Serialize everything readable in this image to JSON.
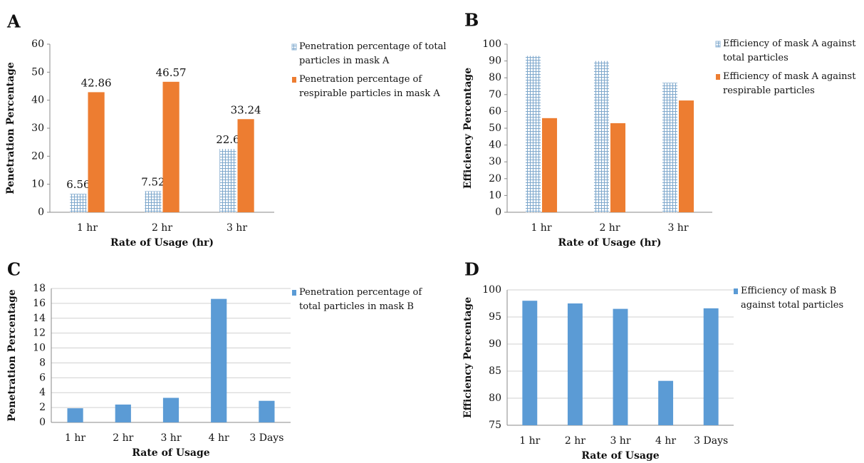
{
  "chart_data": [
    {
      "type": "bar",
      "label": "A",
      "y_label": "Penetration Percentage",
      "x_label": "Rate of Usage (hr)",
      "categories": [
        "1 hr",
        "2 hr",
        "3 hr"
      ],
      "series": [
        {
          "name": "Penetration percentage of total particles in mask A",
          "color": "#8fb4d6",
          "pattern": "grid",
          "values": [
            6.56,
            7.52,
            22.6
          ]
        },
        {
          "name": "Penetration percentage of respirable particles in mask A",
          "color": "#ed7d31",
          "values": [
            42.86,
            46.57,
            33.24
          ]
        }
      ],
      "ylim": [
        0,
        60
      ],
      "yticks": [
        0,
        10,
        20,
        30,
        40,
        50,
        60
      ],
      "grid": false,
      "data_labels": true
    },
    {
      "type": "bar",
      "label": "B",
      "y_label": "Efficiency Percentage",
      "x_label": "Rate of Usage (hr)",
      "categories": [
        "1 hr",
        "2 hr",
        "3 hr"
      ],
      "series": [
        {
          "name": "Efficiency of mask A against total particles",
          "color": "#8fb4d6",
          "pattern": "grid",
          "values": [
            93,
            90,
            77
          ]
        },
        {
          "name": "Efficiency of mask A against respirable particles",
          "color": "#ed7d31",
          "values": [
            56,
            53,
            66.5
          ]
        }
      ],
      "ylim": [
        0,
        100
      ],
      "yticks": [
        0,
        10,
        20,
        30,
        40,
        50,
        60,
        70,
        80,
        90,
        100
      ],
      "grid": false,
      "data_labels": false
    },
    {
      "type": "bar",
      "label": "C",
      "y_label": "Penetration Percentage",
      "x_label": "Rate of Usage",
      "categories": [
        "1 hr",
        "2 hr",
        "3 hr",
        "4 hr",
        "3 Days"
      ],
      "series": [
        {
          "name": "Penetration percentage of total particles in mask B",
          "color": "#5b9bd5",
          "values": [
            1.9,
            2.4,
            3.3,
            16.6,
            2.9
          ]
        }
      ],
      "ylim": [
        0,
        18
      ],
      "yticks": [
        0,
        2,
        4,
        6,
        8,
        10,
        12,
        14,
        16,
        18
      ],
      "grid": true,
      "data_labels": false
    },
    {
      "type": "bar",
      "label": "D",
      "y_label": "Efficiency Percentage",
      "x_label": "Rate of Usage",
      "categories": [
        "1 hr",
        "2 hr",
        "3 hr",
        "4 hr",
        "3 Days"
      ],
      "series": [
        {
          "name": "Efficiency of mask B against total particles",
          "color": "#5b9bd5",
          "values": [
            98,
            97.5,
            96.5,
            83.2,
            96.6
          ]
        }
      ],
      "ylim": [
        75,
        100
      ],
      "yticks": [
        75,
        80,
        85,
        90,
        95,
        100
      ],
      "grid": true,
      "data_labels": false
    }
  ]
}
